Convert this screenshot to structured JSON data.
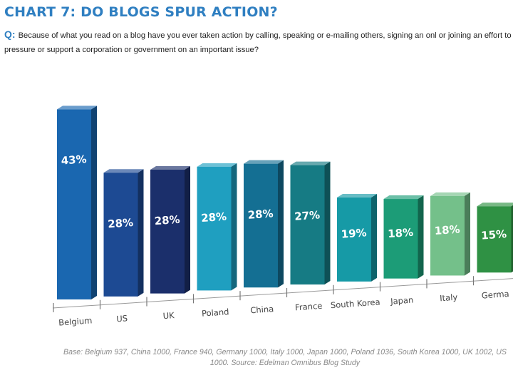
{
  "chart_data": {
    "type": "bar",
    "title": "CHART 7: DO BLOGS SPUR ACTION?",
    "question_marker": "Q:",
    "question": "Because of what you read on a blog have you ever taken action by calling, speaking or e-mailing others, signing an onl or joining an effort to pressure or support a corporation or government on an important issue?",
    "categories": [
      "Belgium",
      "US",
      "UK",
      "Poland",
      "China",
      "France",
      "South Korea",
      "Japan",
      "Italy",
      "Germa"
    ],
    "values": [
      43,
      28,
      28,
      28,
      28,
      27,
      19,
      18,
      18,
      15
    ],
    "value_labels": [
      "43%",
      "28%",
      "28%",
      "28%",
      "28%",
      "27%",
      "19%",
      "18%",
      "18%",
      "15%"
    ],
    "ylim": [
      0,
      45
    ],
    "xlabel": "",
    "ylabel": "",
    "grid": false,
    "colors": [
      "#1a67b0",
      "#1d4a93",
      "#1b2f6b",
      "#1f9fc0",
      "#146f93",
      "#167b84",
      "#169aa6",
      "#1c9c77",
      "#74c08a",
      "#2f9144"
    ],
    "footnote": "Base: Belgium 937, China 1000, France 940, Germany 1000, Italy 1000, Japan 1000, Poland 1036, South Korea 1000, UK 1002, US 1000. Source: Edelman Omnibus Blog Study"
  }
}
